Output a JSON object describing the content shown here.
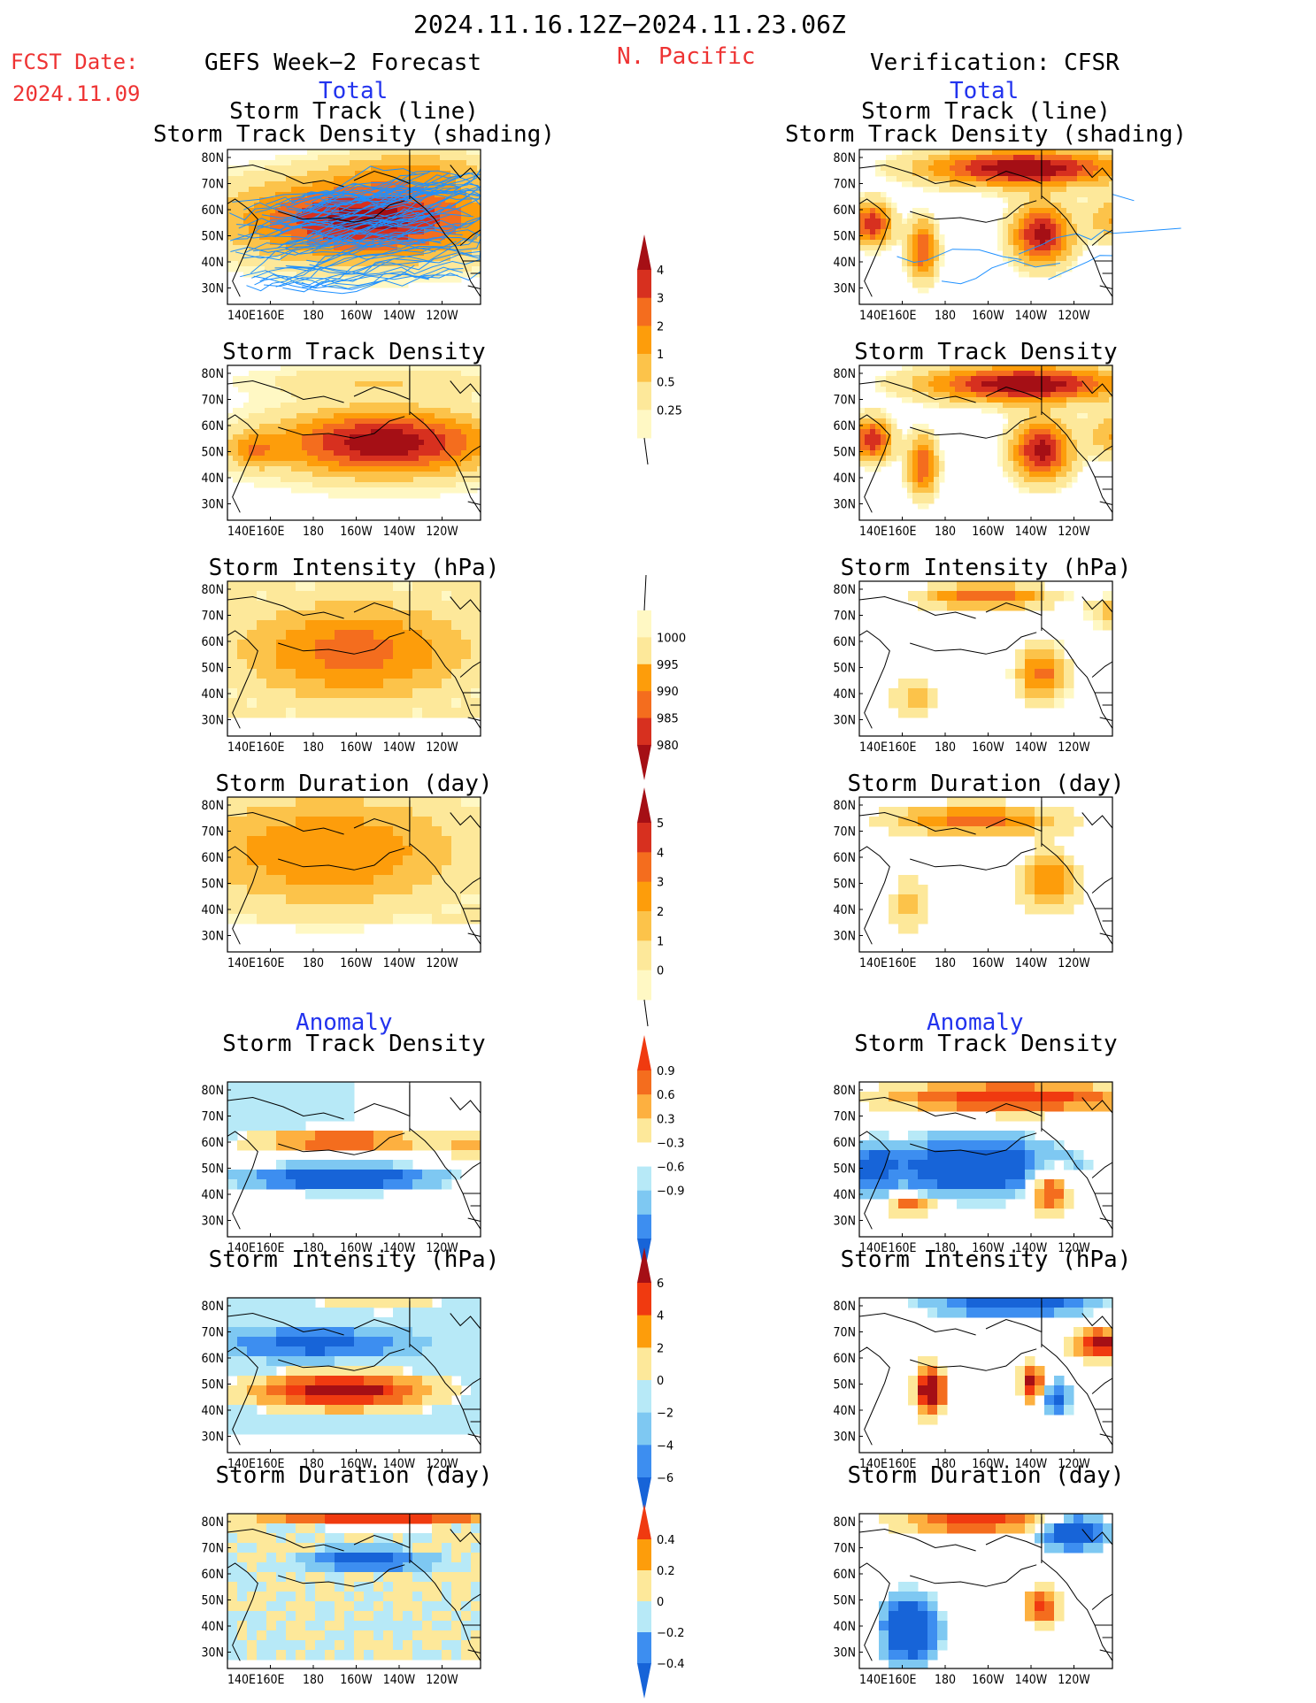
{
  "header": {
    "date_range": "2024.11.16.12Z−2024.11.23.06Z",
    "fcst_label": "FCST Date:",
    "fcst_date": "2024.11.09",
    "model": "GEFS Week−2 Forecast",
    "region": "N. Pacific",
    "verification": "Verification: CFSR"
  },
  "sections": {
    "total": "Total",
    "anomaly": "Anomaly"
  },
  "rows": [
    {
      "left_title": [
        "Storm Track (line)",
        "Storm Track Density (shading)"
      ],
      "right_title": [
        "Storm Track (line)",
        "Storm Track Density (shading)"
      ],
      "section": "total"
    },
    {
      "left_title": [
        "Storm Track Density"
      ],
      "right_title": [
        "Storm Track Density"
      ],
      "section": "total"
    },
    {
      "left_title": [
        "Storm Intensity (hPa)"
      ],
      "right_title": [
        "Storm Intensity (hPa)"
      ],
      "section": "total"
    },
    {
      "left_title": [
        "Storm Duration (day)"
      ],
      "right_title": [
        "Storm Duration (day)"
      ],
      "section": "total"
    },
    {
      "left_title": [
        "Storm Track Density"
      ],
      "right_title": [
        "Storm Track Density"
      ],
      "section": "anomaly"
    },
    {
      "left_title": [
        "Storm Intensity (hPa)"
      ],
      "right_title": [
        "Storm Intensity (hPa)"
      ],
      "section": "anomaly"
    },
    {
      "left_title": [
        "Storm Duration (day)"
      ],
      "right_title": [
        "Storm Duration (day)"
      ],
      "section": "anomaly"
    }
  ],
  "axes": {
    "lat_labels": [
      "80N",
      "70N",
      "60N",
      "50N",
      "40N",
      "30N"
    ],
    "lon_labels": [
      "140E",
      "160E",
      "180",
      "160W",
      "140W",
      "120W"
    ]
  },
  "colorbars": [
    {
      "name": "density-total",
      "labels": [
        "4",
        "3",
        "2",
        "1",
        "0.5",
        "0.25"
      ],
      "colors": [
        "#a50f15",
        "#d7301f",
        "#f46d1e",
        "#fd9d0b",
        "#fcc34a",
        "#fde89a",
        "#fff8c4"
      ]
    },
    {
      "name": "intensity-total",
      "labels": [
        "1000",
        "995",
        "990",
        "985",
        "980"
      ],
      "colors": [
        "#fff8c4",
        "#fde89a",
        "#fd9d0b",
        "#f46d1e",
        "#d7301f",
        "#a50f15"
      ]
    },
    {
      "name": "duration-total",
      "labels": [
        "5",
        "4",
        "3",
        "2",
        "1",
        "0"
      ],
      "colors": [
        "#a50f15",
        "#d7301f",
        "#f46d1e",
        "#fd9d0b",
        "#fcc34a",
        "#fde89a",
        "#fff8c4"
      ]
    },
    {
      "name": "density-anomaly",
      "labels": [
        "0.9",
        "0.6",
        "0.3",
        "−0.3",
        "−0.6",
        "−0.9"
      ],
      "colors": [
        "#f03a10",
        "#f46d1e",
        "#fdb040",
        "#fde89a",
        "#ffffff",
        "#b7e9f7",
        "#7ec8f2",
        "#3d8ef0",
        "#1764d8"
      ]
    },
    {
      "name": "intensity-anomaly",
      "labels": [
        "6",
        "4",
        "2",
        "0",
        "−2",
        "−4",
        "−6"
      ],
      "colors": [
        "#a50f15",
        "#f03a10",
        "#fd9d0b",
        "#fde89a",
        "#b7e9f7",
        "#7ec8f2",
        "#3d8ef0",
        "#1764d8"
      ]
    },
    {
      "name": "duration-anomaly",
      "labels": [
        "0.4",
        "0.2",
        "0",
        "−0.2",
        "−0.4"
      ],
      "colors": [
        "#f03a10",
        "#fd9d0b",
        "#fde89a",
        "#b7e9f7",
        "#3d8ef0",
        "#1764d8"
      ]
    }
  ],
  "palette": {
    "track_line": "#1e90ff",
    "coast": "#000000"
  }
}
